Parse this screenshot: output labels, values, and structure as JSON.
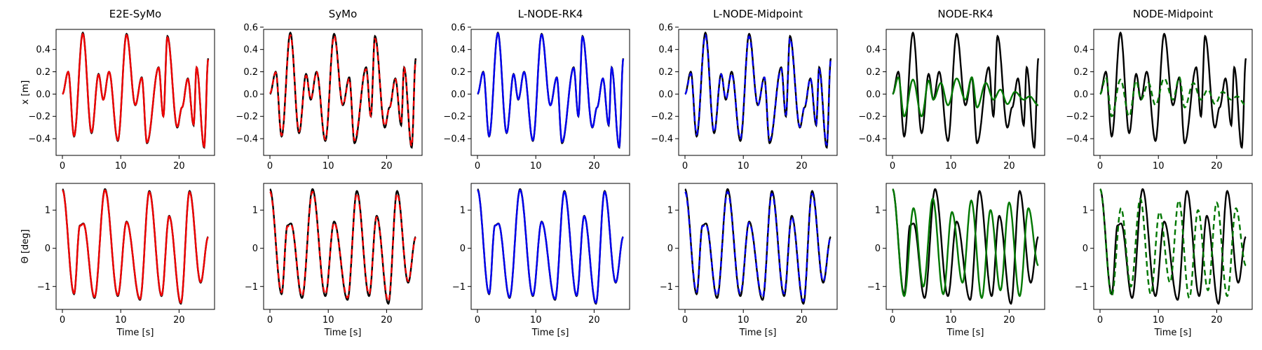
{
  "figure": {
    "columns": [
      "E2E-SyMo",
      "SyMo",
      "L-NODE-RK4",
      "L-NODE-Midpoint",
      "NODE-RK4",
      "NODE-Midpoint"
    ],
    "row_ylabels": [
      "x [m]",
      "Θ [deg]"
    ],
    "xlabel": "Time [s]",
    "colors": {
      "ground_truth": "#000000",
      "red": "#ee0000",
      "blue": "#0000ee",
      "green": "#007700"
    }
  },
  "chart_data": {
    "type": "line",
    "layout": "2x6 grid of subplots",
    "x_range": [
      0,
      25
    ],
    "x_ticks": [
      0,
      10,
      20
    ],
    "rows": [
      {
        "ylabel": "x [m]",
        "ylim": [
          -0.55,
          0.58
        ],
        "yticks": [
          -0.4,
          -0.2,
          0.0,
          0.2,
          0.4
        ],
        "yticks_alt": [
          -0.4,
          -0.2,
          0.0,
          0.2,
          0.4,
          0.6
        ],
        "ground_truth_extrema": [
          [
            0,
            0.0
          ],
          [
            1.0,
            0.2
          ],
          [
            2.0,
            -0.38
          ],
          [
            3.5,
            0.55
          ],
          [
            5.0,
            -0.35
          ],
          [
            6.2,
            0.18
          ],
          [
            7.0,
            -0.05
          ],
          [
            8.0,
            0.2
          ],
          [
            9.5,
            -0.42
          ],
          [
            11.0,
            0.54
          ],
          [
            12.5,
            -0.1
          ],
          [
            13.6,
            0.15
          ],
          [
            14.5,
            -0.44
          ],
          [
            16.5,
            0.24
          ],
          [
            17.3,
            -0.2
          ],
          [
            18.0,
            0.52
          ],
          [
            19.7,
            -0.3
          ],
          [
            20.5,
            -0.12
          ],
          [
            21.5,
            0.14
          ],
          [
            22.5,
            -0.28
          ],
          [
            23.0,
            0.24
          ],
          [
            24.3,
            -0.48
          ],
          [
            25.0,
            0.32
          ]
        ],
        "node_prediction_extrema": [
          [
            0,
            0.0
          ],
          [
            1.0,
            0.15
          ],
          [
            2.0,
            -0.2
          ],
          [
            3.5,
            0.13
          ],
          [
            5.0,
            -0.2
          ],
          [
            6.2,
            0.12
          ],
          [
            7.0,
            -0.05
          ],
          [
            8.3,
            0.1
          ],
          [
            9.5,
            -0.1
          ],
          [
            11.0,
            0.14
          ],
          [
            12.5,
            -0.05
          ],
          [
            13.6,
            0.15
          ],
          [
            14.5,
            -0.12
          ],
          [
            16.0,
            0.1
          ],
          [
            17.3,
            -0.05
          ],
          [
            18.5,
            0.04
          ],
          [
            19.7,
            -0.09
          ],
          [
            21.0,
            0.02
          ],
          [
            22.5,
            -0.05
          ],
          [
            23.5,
            -0.02
          ],
          [
            25.0,
            -0.1
          ]
        ]
      },
      {
        "ylabel": "Θ [deg]",
        "ylim": [
          -1.6,
          1.7
        ],
        "yticks": [
          -1,
          0,
          1
        ],
        "ground_truth_extrema": [
          [
            0,
            1.55
          ],
          [
            2.0,
            -1.2
          ],
          [
            3.0,
            0.6
          ],
          [
            3.6,
            0.65
          ],
          [
            5.5,
            -1.3
          ],
          [
            7.3,
            1.55
          ],
          [
            9.5,
            -1.25
          ],
          [
            11.0,
            0.7
          ],
          [
            13.3,
            -1.35
          ],
          [
            14.9,
            1.5
          ],
          [
            17.0,
            -1.25
          ],
          [
            18.3,
            0.85
          ],
          [
            20.3,
            -1.45
          ],
          [
            21.8,
            1.5
          ],
          [
            23.7,
            -0.9
          ],
          [
            25.0,
            0.3
          ]
        ],
        "node_prediction_extrema": [
          [
            0,
            1.55
          ],
          [
            2.0,
            -1.25
          ],
          [
            3.6,
            1.05
          ],
          [
            5.3,
            -1.0
          ],
          [
            6.9,
            1.3
          ],
          [
            8.7,
            -1.2
          ],
          [
            10.2,
            0.95
          ],
          [
            12.0,
            -0.9
          ],
          [
            13.5,
            1.25
          ],
          [
            15.3,
            -1.3
          ],
          [
            16.8,
            1.0
          ],
          [
            18.5,
            -1.1
          ],
          [
            20.0,
            1.2
          ],
          [
            21.8,
            -1.25
          ],
          [
            23.3,
            1.05
          ],
          [
            25.0,
            -0.45
          ]
        ]
      }
    ],
    "series_per_column": [
      {
        "prediction_color": "red",
        "prediction_style": "solid"
      },
      {
        "prediction_color": "red",
        "prediction_style": "dashed"
      },
      {
        "prediction_color": "blue",
        "prediction_style": "solid"
      },
      {
        "prediction_color": "blue",
        "prediction_style": "dashed"
      },
      {
        "prediction_color": "green",
        "prediction_style": "solid"
      },
      {
        "prediction_color": "green",
        "prediction_style": "dashed"
      }
    ]
  }
}
